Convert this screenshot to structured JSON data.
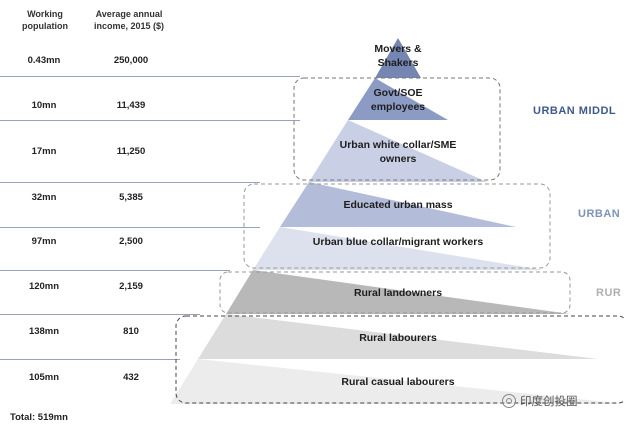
{
  "header": {
    "population": "Working population",
    "income": "Average annual income, 2015 ($)"
  },
  "rows": [
    {
      "population": "0.43mn",
      "income": "250,000",
      "label": "Movers & Shakers"
    },
    {
      "population": "10mn",
      "income": "11,439",
      "label": "Govt/SOE employees"
    },
    {
      "population": "17mn",
      "income": "11,250",
      "label": "Urban white collar/SME owners"
    },
    {
      "population": "32mn",
      "income": "5,385",
      "label": "Educated urban mass"
    },
    {
      "population": "97mn",
      "income": "2,500",
      "label": "Urban blue collar/migrant workers"
    },
    {
      "population": "120mn",
      "income": "2,159",
      "label": "Rural landowners"
    },
    {
      "population": "138mn",
      "income": "810",
      "label": "Rural labourers"
    },
    {
      "population": "105mn",
      "income": "432",
      "label": "Rural casual labourers"
    }
  ],
  "groups": [
    {
      "label": "URBAN MIDDL",
      "color": "#3f5a8a"
    },
    {
      "label": "URBAN",
      "color": "#7f93b8"
    },
    {
      "label": "RUR",
      "color": "#b0b0b0"
    }
  ],
  "total": "Total: 519mn",
  "watermark": "印度创投圈",
  "colors": {
    "tier1": "#7686b2",
    "tier2": "#b3bdd9",
    "tier3": "#d7dcea",
    "tier4": "#b8b8b8",
    "tier5": "#dcdcdc",
    "tier6": "#ececec"
  }
}
